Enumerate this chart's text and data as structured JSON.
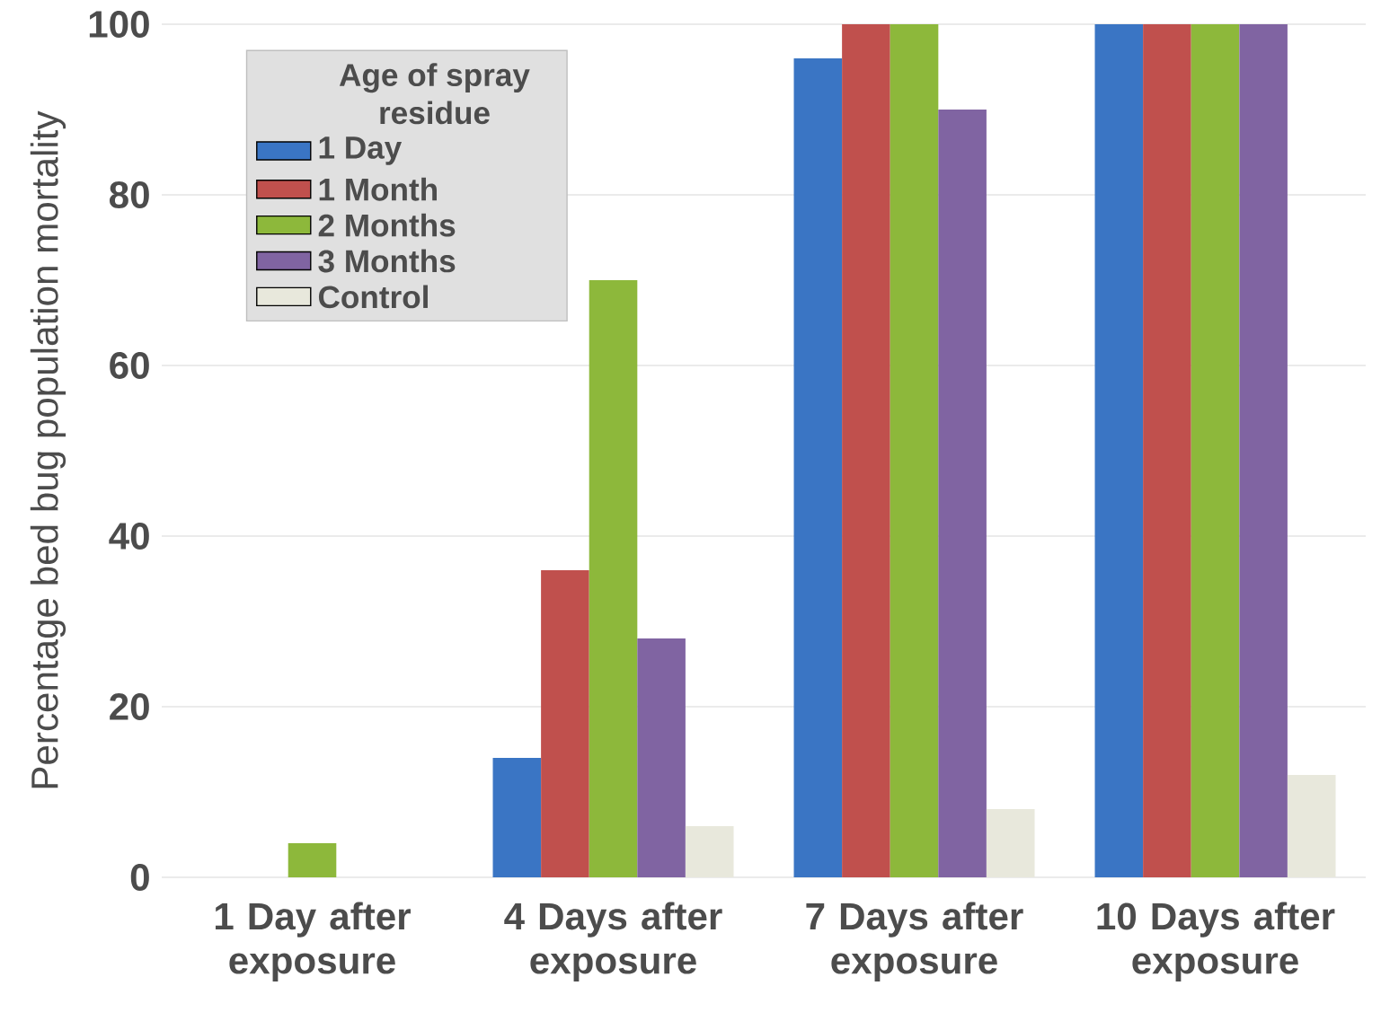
{
  "chart_data": {
    "type": "bar",
    "ylabel": "Percentage bed bug population mortality",
    "legend_title": "Age of spray residue",
    "categories": [
      "1 Day after exposure",
      "4 Days after exposure",
      "7 Days after exposure",
      "10 Days after exposure"
    ],
    "series": [
      {
        "name": "1 Day",
        "color": "#3a75c4",
        "values": [
          0,
          14,
          96,
          100
        ]
      },
      {
        "name": "1 Month",
        "color": "#c0504d",
        "values": [
          0,
          36,
          100,
          100
        ]
      },
      {
        "name": "2 Months",
        "color": "#8db83b",
        "values": [
          4,
          70,
          100,
          100
        ]
      },
      {
        "name": "3 Months",
        "color": "#8064a2",
        "values": [
          0,
          28,
          90,
          100
        ]
      },
      {
        "name": "Control",
        "color": "#e8e8dc",
        "values": [
          0,
          6,
          8,
          12
        ]
      }
    ],
    "ylim": [
      0,
      100
    ],
    "yticks": [
      0,
      20,
      40,
      60,
      80,
      100
    ],
    "grid": "y",
    "legend": "top left"
  }
}
